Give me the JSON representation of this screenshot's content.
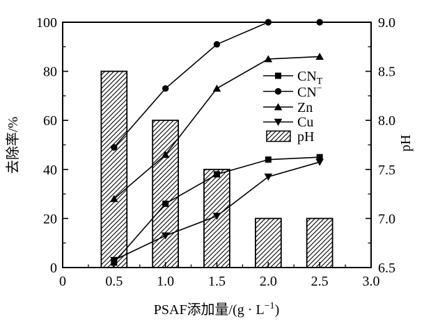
{
  "colors": {
    "foreground": "#000000",
    "background": "#ffffff"
  },
  "chart_data": {
    "type": "combo",
    "x": [
      0.5,
      1.0,
      1.5,
      2.0,
      2.5
    ],
    "series": [
      {
        "name": "CN_T",
        "kind": "line",
        "marker": "square",
        "axis": "left",
        "values": [
          2,
          26,
          38,
          44,
          45
        ]
      },
      {
        "name": "CN-",
        "kind": "line",
        "marker": "circle",
        "axis": "left",
        "values": [
          49,
          73,
          91,
          100,
          100
        ]
      },
      {
        "name": "Zn",
        "kind": "line",
        "marker": "triangle-up",
        "axis": "left",
        "values": [
          28,
          46,
          73,
          85,
          86
        ]
      },
      {
        "name": "Cu",
        "kind": "line",
        "marker": "triangle-down",
        "axis": "left",
        "values": [
          3,
          13,
          21,
          37,
          43
        ]
      },
      {
        "name": "pH",
        "kind": "bar",
        "fill": "diagonal-hatch",
        "axis": "right",
        "values": [
          8.5,
          8.0,
          7.5,
          7.0,
          7.0
        ]
      }
    ],
    "bar_width_x": 0.25,
    "xlabel": "PSAF添加量/(g · L⁻¹)",
    "ylabel_left": "去除率/%",
    "ylabel_right": "pH",
    "xlim": [
      0,
      3.0
    ],
    "ylim_left": [
      0,
      100
    ],
    "ylim_right": [
      6.5,
      9.0
    ],
    "grid": false,
    "legend_position": "inside-upper-right",
    "x_major_ticks": [
      0,
      0.5,
      1.0,
      1.5,
      2.0,
      2.5,
      3.0
    ],
    "x_tick_labels": [
      "0",
      "0.5",
      "1.0",
      "1.5",
      "2.0",
      "2.5",
      "3.0"
    ],
    "x_minor_step": 0.25,
    "y_left_major_ticks": [
      0,
      20,
      40,
      60,
      80,
      100
    ],
    "y_left_tick_labels": [
      "0",
      "20",
      "40",
      "60",
      "80",
      "100"
    ],
    "y_left_minor_step": 10,
    "y_right_major_ticks": [
      6.5,
      7.0,
      7.5,
      8.0,
      8.5,
      9.0
    ],
    "y_right_tick_labels": [
      "6.5",
      "7.0",
      "7.5",
      "8.0",
      "8.5",
      "9.0"
    ],
    "y_right_minor_step": 0.25
  },
  "axis_labels": {
    "x_pre": "PSAF添加量/(g · L",
    "x_sup": "−1",
    "x_post": ")",
    "left": "去除率/%",
    "right": "pH"
  },
  "legend": {
    "items": [
      {
        "base": "CN",
        "sub": "T",
        "marker": "square-line"
      },
      {
        "base": "CN",
        "sup": "−",
        "marker": "circle-line"
      },
      {
        "base": "Zn",
        "marker": "triangle-up-line"
      },
      {
        "base": "Cu",
        "marker": "triangle-down-line"
      },
      {
        "base": "pH",
        "marker": "hatched-box"
      }
    ]
  }
}
